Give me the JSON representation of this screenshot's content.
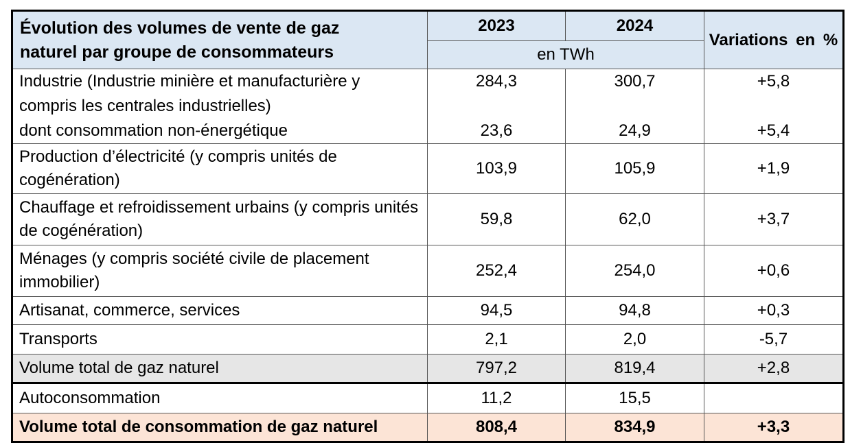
{
  "colors": {
    "header_bg": "#dbe7f3",
    "subtotal_row_bg": "#e6e6e6",
    "total_row_bg": "#fce4d6",
    "inner_border": "#545454",
    "outer_border": "#000000"
  },
  "table": {
    "title_line1": "Évolution des volumes de vente de gaz",
    "title_line2": "naturel par groupe de consommateurs",
    "columns": {
      "y2023": "2023",
      "y2024": "2024",
      "unit": "en TWh",
      "variations": "Variations en %"
    },
    "rows": {
      "industrie": {
        "label_main": "Industrie (Industrie minière et manufacturière y compris les centrales industrielles)",
        "label_sub": "dont consommation non-énergétique",
        "y2023_main": "284,3",
        "y2023_sub": "23,6",
        "y2024_main": "300,7",
        "y2024_sub": "24,9",
        "var_main": "+5,8",
        "var_sub": "+5,4"
      },
      "electricite": {
        "label": "Production d’électricité (y compris unités de cogénération)",
        "y2023": "103,9",
        "y2024": "105,9",
        "var": "+1,9"
      },
      "chauffage": {
        "label": "Chauffage et refroidissement urbains (y compris unités de cogénération)",
        "y2023": "59,8",
        "y2024": "62,0",
        "var": "+3,7"
      },
      "menages": {
        "label": "Ménages (y compris société civile de placement immobilier)",
        "y2023": "252,4",
        "y2024": "254,0",
        "var": "+0,6"
      },
      "artisanat": {
        "label": "Artisanat, commerce, services",
        "y2023": "94,5",
        "y2024": "94,8",
        "var": "+0,3"
      },
      "transports": {
        "label": "Transports",
        "y2023": "2,1",
        "y2024": "2,0",
        "var": "-5,7"
      },
      "volume_total": {
        "label": "Volume total de gaz naturel",
        "y2023": "797,2",
        "y2024": "819,4",
        "var": "+2,8"
      },
      "autoconsommation": {
        "label": "Autoconsommation",
        "y2023": "11,2",
        "y2024": "15,5",
        "var": ""
      },
      "volume_total_consommation": {
        "label": "Volume total de consommation de gaz naturel",
        "y2023": "808,4",
        "y2024": "834,9",
        "var": "+3,3"
      }
    }
  }
}
